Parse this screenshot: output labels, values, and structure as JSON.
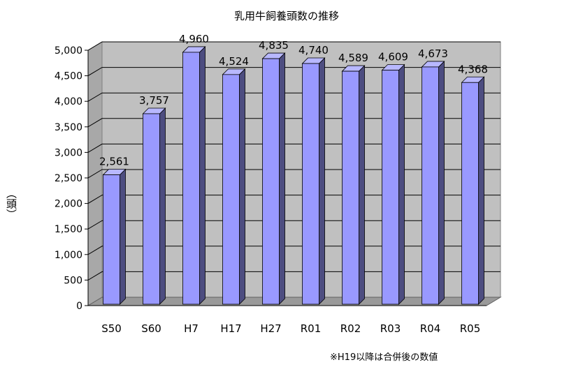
{
  "chart_data": {
    "type": "bar",
    "title": "乳用牛飼養頭数の推移",
    "ylabel": "（頭）",
    "xlabel": "",
    "categories": [
      "S50",
      "S60",
      "H7",
      "H17",
      "H27",
      "R01",
      "R02",
      "R03",
      "R04",
      "R05"
    ],
    "values": [
      2561,
      3757,
      4960,
      4524,
      4835,
      4740,
      4589,
      4609,
      4673,
      4368
    ],
    "value_labels": [
      "2,561",
      "3,757",
      "4,960",
      "4,524",
      "4,835",
      "4,740",
      "4,589",
      "4,609",
      "4,673",
      "4,368"
    ],
    "ylim": [
      0,
      5000
    ],
    "yticks": [
      0,
      500,
      1000,
      1500,
      2000,
      2500,
      3000,
      3500,
      4000,
      4500,
      5000
    ],
    "ytick_labels": [
      "0",
      "500",
      "1,000",
      "1,500",
      "2,000",
      "2,500",
      "3,000",
      "3,500",
      "4,000",
      "4,500",
      "5,000"
    ],
    "grid": true,
    "legend": "none",
    "style": "3d-column",
    "colors": {
      "bar_front": "#9999ff",
      "bar_side": "#4d4d80",
      "bar_top": "#b8b8ff",
      "wall": "#c0c0c0",
      "floor": "#9a9a9a",
      "grid": "#000000"
    },
    "note": "※H19以降は合併後の数値"
  }
}
